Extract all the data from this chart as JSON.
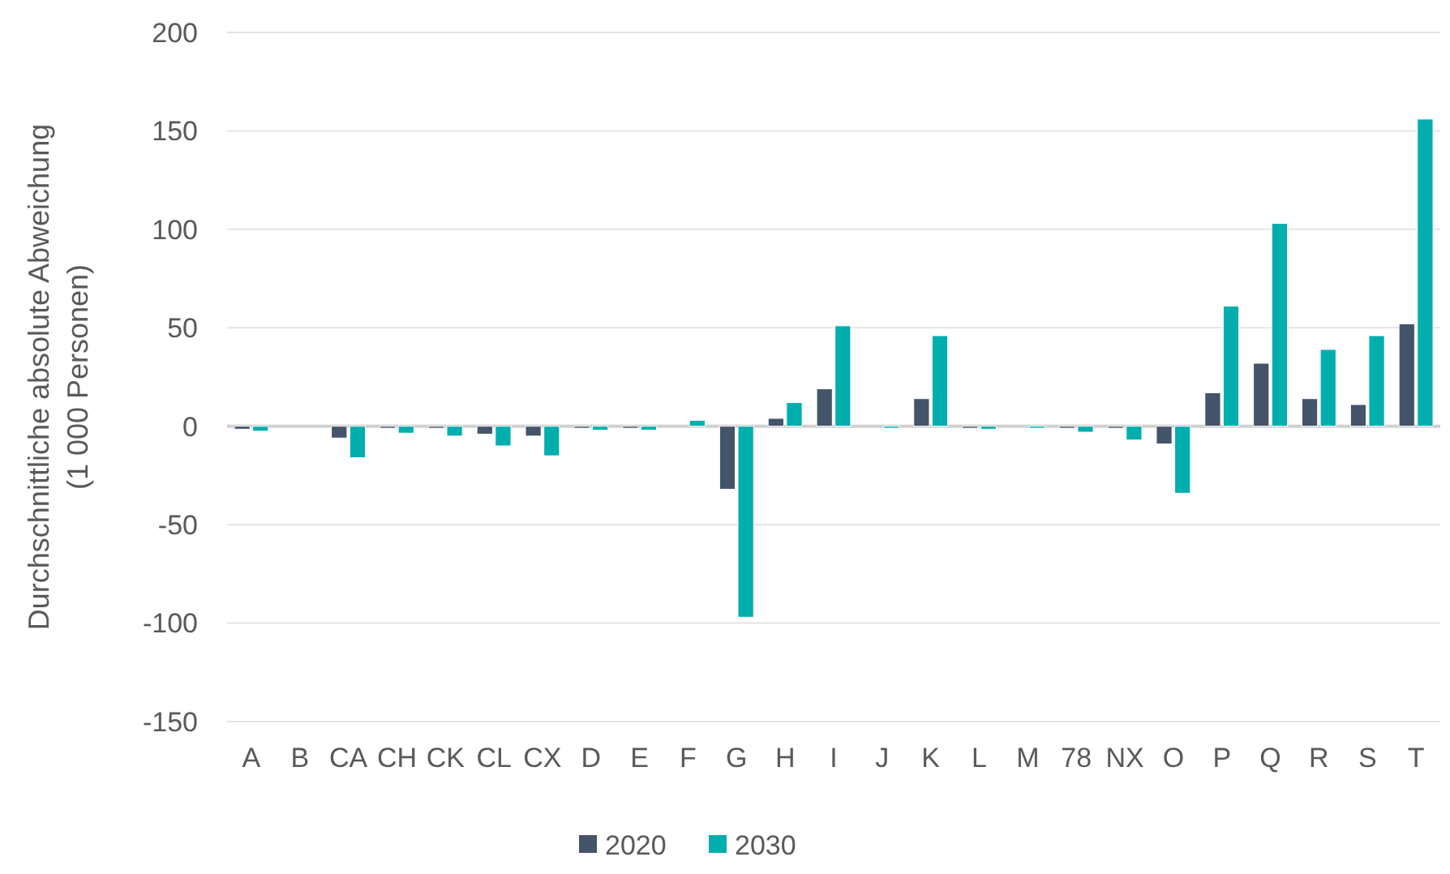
{
  "chart_data": {
    "type": "bar",
    "ylabel": "Durchschnittliche absolute Abweichung\n(1 000 Personen)",
    "categories": [
      "A",
      "B",
      "CA",
      "CH",
      "CK",
      "CL",
      "CX",
      "D",
      "E",
      "F",
      "G",
      "H",
      "I",
      "J",
      "K",
      "L",
      "M",
      "78",
      "NX",
      "O",
      "P",
      "Q",
      "R",
      "S",
      "T"
    ],
    "series": [
      {
        "name": "2020",
        "color": "#44546a",
        "values": [
          -1.5,
          0,
          -6,
          -1,
          -1,
          -4,
          -5,
          -1,
          -1,
          0,
          -32,
          4,
          19,
          0,
          14,
          -1,
          0,
          -1,
          -1,
          -9,
          17,
          32,
          14,
          11,
          52
        ]
      },
      {
        "name": "2030",
        "color": "#00aeae",
        "values": [
          -2.5,
          0,
          -16,
          -3.5,
          -5,
          -10,
          -15,
          -2,
          -2,
          3,
          -97,
          12,
          51,
          -1,
          46,
          -1.5,
          -1,
          -3,
          -7,
          -34,
          61,
          103,
          39,
          46,
          156
        ]
      }
    ],
    "ylim": [
      -150,
      200
    ],
    "yticks": [
      -150,
      -100,
      -50,
      0,
      50,
      100,
      150,
      200
    ],
    "grid": "y",
    "legend": "bottom"
  }
}
